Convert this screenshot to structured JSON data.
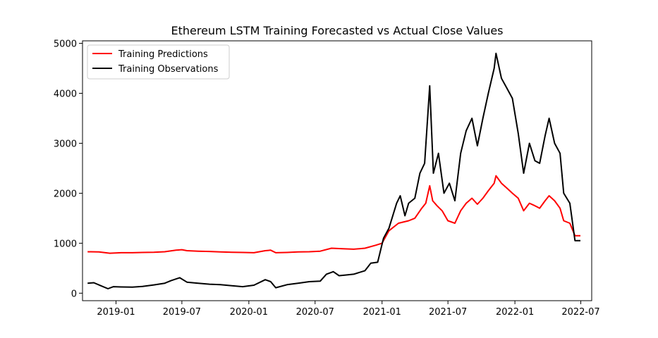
{
  "chart_data": {
    "type": "line",
    "title": "Ethereum LSTM Training Forecasted vs Actual Close Values",
    "xlabel": "",
    "ylabel": "",
    "x_axis": {
      "type": "date",
      "range": [
        "2018-10-01",
        "2022-07-31"
      ],
      "ticks": [
        "2019-01",
        "2019-07",
        "2020-01",
        "2020-07",
        "2021-01",
        "2021-07",
        "2022-01",
        "2022-07"
      ]
    },
    "y_axis": {
      "range": [
        -150,
        5050
      ],
      "ticks": [
        0,
        1000,
        2000,
        3000,
        4000,
        5000
      ]
    },
    "grid": false,
    "legend": {
      "placement": "top-left",
      "entries": [
        "Training Predictions",
        "Training Observations"
      ]
    },
    "series": [
      {
        "name": "Training Predictions",
        "color": "#ff0000",
        "points": [
          [
            "2018-10-15",
            830
          ],
          [
            "2018-11-15",
            825
          ],
          [
            "2018-12-15",
            800
          ],
          [
            "2019-01-15",
            810
          ],
          [
            "2019-02-15",
            810
          ],
          [
            "2019-03-15",
            815
          ],
          [
            "2019-04-15",
            820
          ],
          [
            "2019-05-15",
            830
          ],
          [
            "2019-06-15",
            860
          ],
          [
            "2019-07-01",
            870
          ],
          [
            "2019-07-15",
            850
          ],
          [
            "2019-08-15",
            840
          ],
          [
            "2019-09-15",
            835
          ],
          [
            "2019-10-15",
            825
          ],
          [
            "2019-11-15",
            820
          ],
          [
            "2019-12-15",
            815
          ],
          [
            "2020-01-15",
            810
          ],
          [
            "2020-02-15",
            850
          ],
          [
            "2020-03-01",
            860
          ],
          [
            "2020-03-15",
            810
          ],
          [
            "2020-04-15",
            815
          ],
          [
            "2020-05-15",
            825
          ],
          [
            "2020-06-15",
            830
          ],
          [
            "2020-07-15",
            840
          ],
          [
            "2020-08-15",
            900
          ],
          [
            "2020-09-15",
            890
          ],
          [
            "2020-10-15",
            880
          ],
          [
            "2020-11-15",
            900
          ],
          [
            "2020-12-15",
            960
          ],
          [
            "2021-01-01",
            1000
          ],
          [
            "2021-01-20",
            1250
          ],
          [
            "2021-02-15",
            1400
          ],
          [
            "2021-03-15",
            1450
          ],
          [
            "2021-04-01",
            1500
          ],
          [
            "2021-04-20",
            1700
          ],
          [
            "2021-05-01",
            1800
          ],
          [
            "2021-05-12",
            2150
          ],
          [
            "2021-05-20",
            1850
          ],
          [
            "2021-06-01",
            1750
          ],
          [
            "2021-06-15",
            1650
          ],
          [
            "2021-07-01",
            1450
          ],
          [
            "2021-07-20",
            1400
          ],
          [
            "2021-08-05",
            1650
          ],
          [
            "2021-08-20",
            1800
          ],
          [
            "2021-09-05",
            1900
          ],
          [
            "2021-09-20",
            1780
          ],
          [
            "2021-10-05",
            1900
          ],
          [
            "2021-10-20",
            2050
          ],
          [
            "2021-11-05",
            2200
          ],
          [
            "2021-11-10",
            2350
          ],
          [
            "2021-11-25",
            2200
          ],
          [
            "2021-12-10",
            2100
          ],
          [
            "2021-12-25",
            2000
          ],
          [
            "2022-01-10",
            1900
          ],
          [
            "2022-01-25",
            1650
          ],
          [
            "2022-02-10",
            1800
          ],
          [
            "2022-02-25",
            1750
          ],
          [
            "2022-03-10",
            1700
          ],
          [
            "2022-03-25",
            1850
          ],
          [
            "2022-04-05",
            1950
          ],
          [
            "2022-04-20",
            1850
          ],
          [
            "2022-05-05",
            1700
          ],
          [
            "2022-05-15",
            1450
          ],
          [
            "2022-06-01",
            1400
          ],
          [
            "2022-06-15",
            1150
          ],
          [
            "2022-06-30",
            1150
          ]
        ]
      },
      {
        "name": "Training Observations",
        "color": "#000000",
        "points": [
          [
            "2018-10-15",
            200
          ],
          [
            "2018-11-01",
            210
          ],
          [
            "2018-11-20",
            150
          ],
          [
            "2018-12-10",
            90
          ],
          [
            "2018-12-25",
            130
          ],
          [
            "2019-01-15",
            125
          ],
          [
            "2019-02-15",
            120
          ],
          [
            "2019-03-15",
            135
          ],
          [
            "2019-04-15",
            165
          ],
          [
            "2019-05-15",
            200
          ],
          [
            "2019-06-01",
            250
          ],
          [
            "2019-06-25",
            310
          ],
          [
            "2019-07-15",
            220
          ],
          [
            "2019-08-15",
            200
          ],
          [
            "2019-09-15",
            180
          ],
          [
            "2019-10-15",
            170
          ],
          [
            "2019-11-15",
            150
          ],
          [
            "2019-12-15",
            130
          ],
          [
            "2020-01-15",
            160
          ],
          [
            "2020-02-15",
            270
          ],
          [
            "2020-03-01",
            230
          ],
          [
            "2020-03-15",
            110
          ],
          [
            "2020-04-15",
            170
          ],
          [
            "2020-05-15",
            200
          ],
          [
            "2020-06-15",
            230
          ],
          [
            "2020-07-15",
            240
          ],
          [
            "2020-08-01",
            380
          ],
          [
            "2020-08-20",
            430
          ],
          [
            "2020-09-05",
            350
          ],
          [
            "2020-09-20",
            360
          ],
          [
            "2020-10-15",
            380
          ],
          [
            "2020-11-15",
            450
          ],
          [
            "2020-12-01",
            600
          ],
          [
            "2020-12-20",
            620
          ],
          [
            "2021-01-05",
            1100
          ],
          [
            "2021-01-20",
            1300
          ],
          [
            "2021-02-10",
            1800
          ],
          [
            "2021-02-20",
            1950
          ],
          [
            "2021-03-05",
            1550
          ],
          [
            "2021-03-15",
            1800
          ],
          [
            "2021-04-01",
            1900
          ],
          [
            "2021-04-15",
            2400
          ],
          [
            "2021-04-28",
            2600
          ],
          [
            "2021-05-12",
            4150
          ],
          [
            "2021-05-22",
            2400
          ],
          [
            "2021-06-05",
            2800
          ],
          [
            "2021-06-20",
            2000
          ],
          [
            "2021-07-05",
            2200
          ],
          [
            "2021-07-20",
            1850
          ],
          [
            "2021-08-05",
            2800
          ],
          [
            "2021-08-20",
            3250
          ],
          [
            "2021-09-05",
            3500
          ],
          [
            "2021-09-20",
            2950
          ],
          [
            "2021-10-05",
            3500
          ],
          [
            "2021-10-20",
            4000
          ],
          [
            "2021-11-05",
            4500
          ],
          [
            "2021-11-10",
            4800
          ],
          [
            "2021-11-25",
            4300
          ],
          [
            "2021-12-10",
            4100
          ],
          [
            "2021-12-25",
            3900
          ],
          [
            "2022-01-10",
            3200
          ],
          [
            "2022-01-25",
            2400
          ],
          [
            "2022-02-10",
            3000
          ],
          [
            "2022-02-25",
            2650
          ],
          [
            "2022-03-10",
            2600
          ],
          [
            "2022-03-25",
            3150
          ],
          [
            "2022-04-05",
            3500
          ],
          [
            "2022-04-20",
            3000
          ],
          [
            "2022-05-05",
            2800
          ],
          [
            "2022-05-15",
            2000
          ],
          [
            "2022-06-01",
            1800
          ],
          [
            "2022-06-15",
            1050
          ],
          [
            "2022-06-30",
            1050
          ]
        ]
      }
    ]
  }
}
